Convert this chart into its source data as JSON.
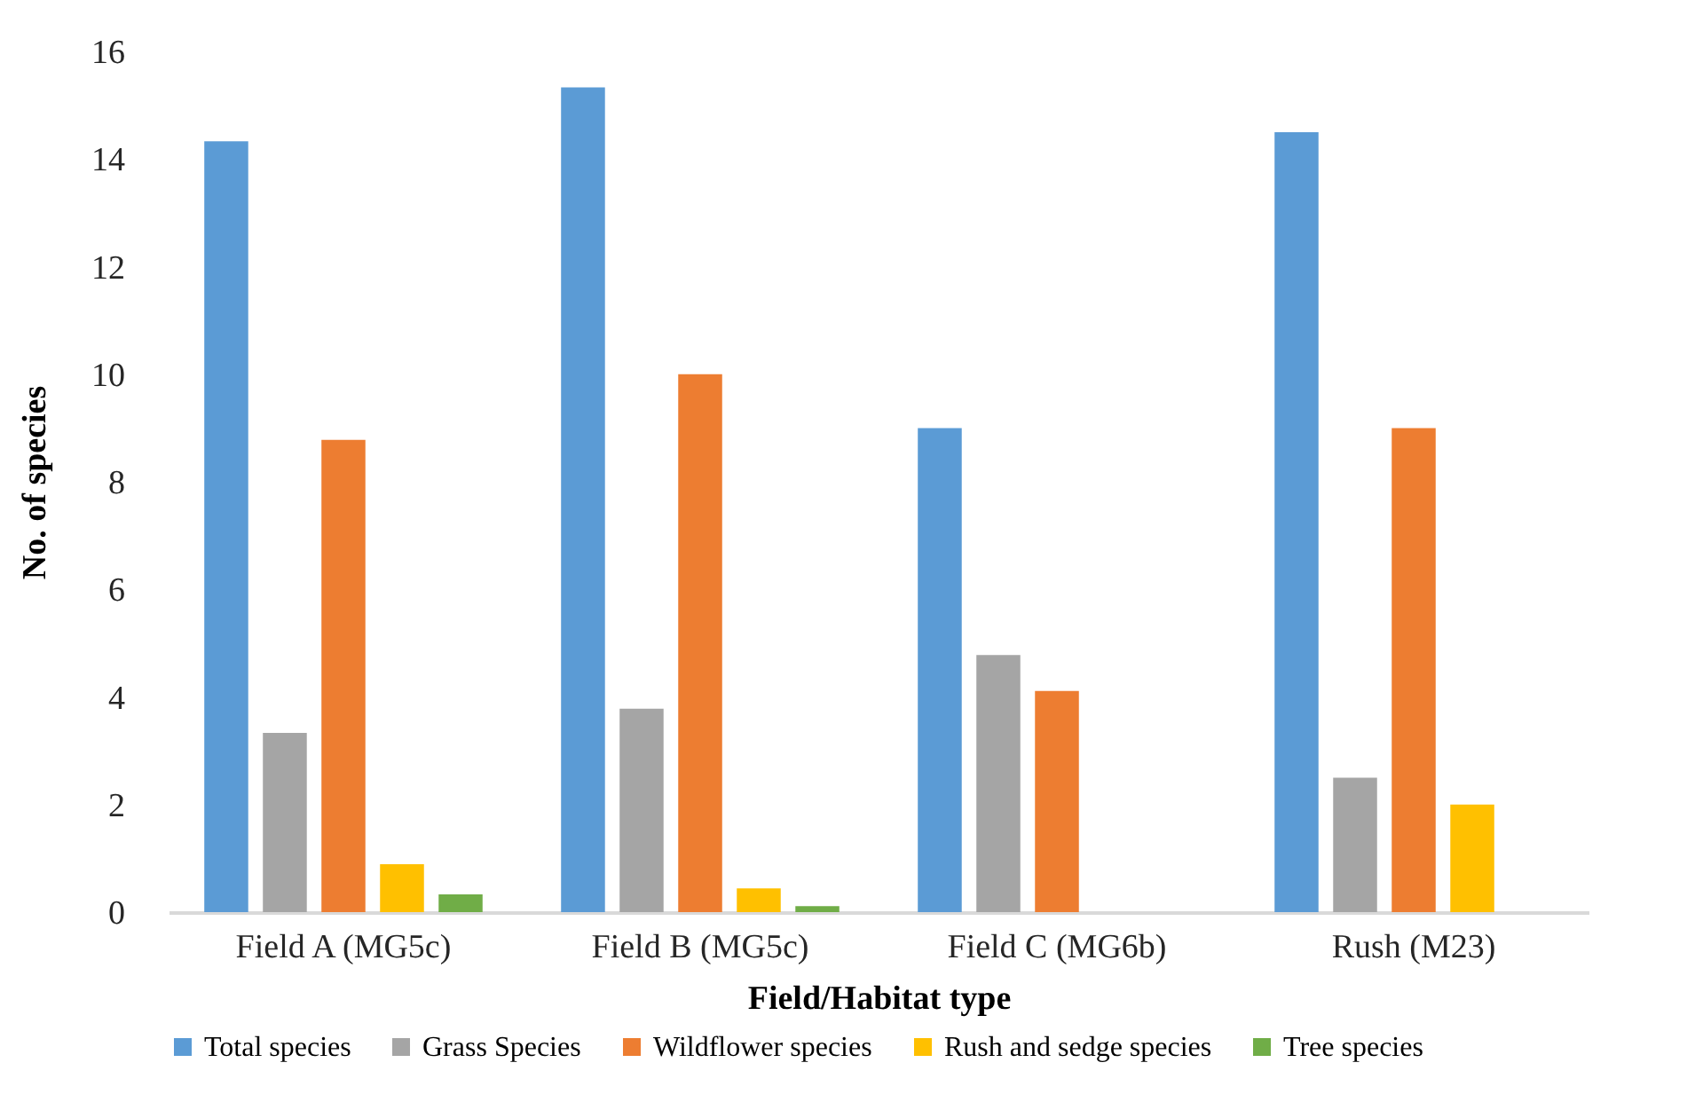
{
  "chart_data": {
    "type": "bar",
    "xlabel": "Field/Habitat type",
    "ylabel": "No. of species",
    "categories": [
      "Field A (MG5c)",
      "Field B (MG5c)",
      "Field C (MG6b)",
      "Rush (M23)"
    ],
    "series": [
      {
        "name": "Total species",
        "color": "#5b9bd5",
        "values": [
          14.33,
          15.33,
          9,
          14.5
        ]
      },
      {
        "name": "Grass Species",
        "color": "#a5a5a5",
        "values": [
          3.33,
          3.78,
          4.78,
          2.5
        ]
      },
      {
        "name": "Wildflower species",
        "color": "#ed7d31",
        "values": [
          8.78,
          10,
          4.11,
          9
        ]
      },
      {
        "name": "Rush and sedge species",
        "color": "#ffc000",
        "values": [
          0.89,
          0.44,
          0,
          2
        ]
      },
      {
        "name": "Tree species",
        "color": "#70ad47",
        "values": [
          0.33,
          0.11,
          0,
          0
        ]
      }
    ],
    "ylim": [
      0,
      16
    ],
    "yticks": [
      0,
      2,
      4,
      6,
      8,
      10,
      12,
      14,
      16
    ],
    "grid": false,
    "legend": "bottom"
  }
}
